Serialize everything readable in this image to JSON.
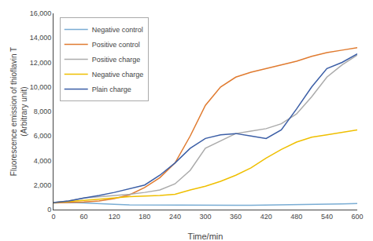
{
  "chart_data": {
    "type": "line",
    "xlabel": "Time/min",
    "ylabel": "Fluorescence emission of thioflavin T\n(Arbitrary unit)",
    "xlim": [
      0,
      600
    ],
    "ylim": [
      0,
      16000
    ],
    "xticks": [
      0,
      60,
      120,
      180,
      240,
      300,
      360,
      420,
      480,
      540,
      600
    ],
    "yticks": [
      0,
      {
        "value": 2000,
        "label": "2,000"
      },
      {
        "value": 4000,
        "label": "4,000"
      },
      {
        "value": 6000,
        "label": "6,000"
      },
      {
        "value": 8000,
        "label": "8,000"
      },
      {
        "value": 10000,
        "label": "10,000"
      },
      {
        "value": 12000,
        "label": "12,000"
      },
      {
        "value": 14000,
        "label": "14,000"
      },
      {
        "value": 16000,
        "label": "16,000"
      }
    ],
    "grid": false,
    "legend": "upper left",
    "x": [
      0,
      30,
      60,
      90,
      120,
      150,
      180,
      210,
      240,
      270,
      300,
      330,
      360,
      390,
      420,
      450,
      480,
      510,
      540,
      570,
      600
    ],
    "series": [
      {
        "name": "Negative control",
        "color": "#7AADD4",
        "values": [
          550,
          580,
          550,
          480,
          430,
          390,
          380,
          360,
          350,
          340,
          340,
          340,
          350,
          360,
          370,
          380,
          400,
          420,
          440,
          460,
          490
        ]
      },
      {
        "name": "Positive control",
        "color": "#E07B30",
        "values": [
          550,
          580,
          620,
          700,
          900,
          1200,
          1800,
          2600,
          3800,
          6000,
          8500,
          10000,
          10800,
          11200,
          11500,
          11800,
          12100,
          12500,
          12800,
          13000,
          13200
        ]
      },
      {
        "name": "Positive charge",
        "color": "#ABABAB",
        "values": [
          580,
          700,
          950,
          1050,
          1150,
          1250,
          1400,
          1600,
          2100,
          3200,
          5000,
          5600,
          6200,
          6400,
          6600,
          7000,
          7800,
          9200,
          10800,
          11800,
          12600
        ]
      },
      {
        "name": "Negative charge",
        "color": "#EFBF00",
        "values": [
          580,
          650,
          750,
          850,
          950,
          1050,
          1100,
          1150,
          1250,
          1600,
          1900,
          2300,
          2800,
          3400,
          4200,
          4900,
          5500,
          5900,
          6100,
          6300,
          6500
        ]
      },
      {
        "name": "Plain charge",
        "color": "#3B5EA6",
        "values": [
          580,
          700,
          950,
          1150,
          1400,
          1700,
          2000,
          2800,
          3800,
          5000,
          5800,
          6100,
          6200,
          6000,
          5800,
          6500,
          8200,
          10000,
          11500,
          12000,
          12700
        ]
      }
    ]
  }
}
